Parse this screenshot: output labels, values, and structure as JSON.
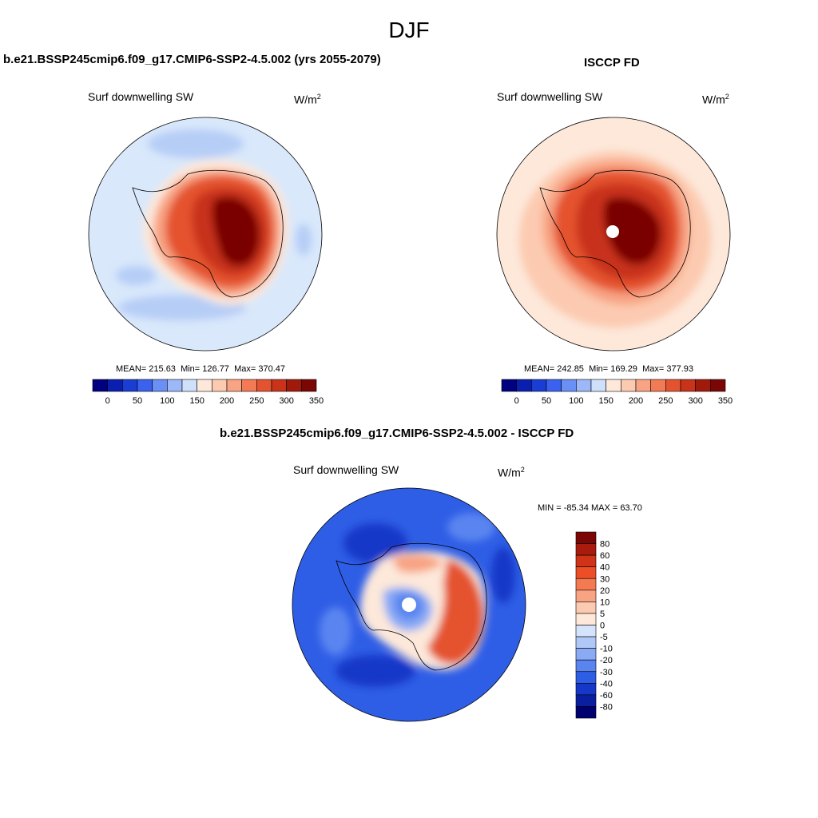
{
  "main_title": "DJF",
  "panels": {
    "model": {
      "title": "b.e21.BSSP245cmip6.f09_g17.CMIP6-SSP2-4.5.002 (yrs 2055-2079)",
      "variable": "Surf downwelling SW",
      "units": "W/m",
      "units_exp": "2",
      "stats": {
        "mean_label": "MEAN=",
        "mean": "215.63",
        "min_label": "Min=",
        "min": "126.77",
        "max_label": "Max=",
        "max": "370.47"
      }
    },
    "obs": {
      "title": "ISCCP FD",
      "variable": "Surf downwelling SW",
      "units": "W/m",
      "units_exp": "2",
      "stats": {
        "mean_label": "MEAN=",
        "mean": "242.85",
        "min_label": "Min=",
        "min": "169.29",
        "max_label": "Max=",
        "max": "377.93"
      }
    },
    "diff": {
      "title": "b.e21.BSSP245cmip6.f09_g17.CMIP6-SSP2-4.5.002 - ISCCP FD",
      "variable": "Surf downwelling SW",
      "units": "W/m",
      "units_exp": "2",
      "minmax": "MIN = -85.34 MAX =  63.70"
    }
  },
  "colorbars": {
    "abs": {
      "ticks": [
        "0",
        "50",
        "100",
        "150",
        "200",
        "250",
        "300",
        "350"
      ],
      "colors": [
        "#000080",
        "#0a1fb0",
        "#1a3ed4",
        "#3a62ef",
        "#6a8ff5",
        "#9cb8f8",
        "#cfe0fb",
        "#fde8da",
        "#fccab0",
        "#f8a383",
        "#f27a55",
        "#e4532f",
        "#c8331a",
        "#a01a0c",
        "#7a0606"
      ]
    },
    "diff": {
      "labels": [
        "80",
        "60",
        "40",
        "30",
        "20",
        "10",
        "5",
        "0",
        "-5",
        "-10",
        "-20",
        "-30",
        "-40",
        "-60",
        "-80"
      ],
      "colors": [
        "#7a0606",
        "#a81b0d",
        "#cf3418",
        "#ec4f27",
        "#f47a52",
        "#f8a383",
        "#fccab0",
        "#fde8da",
        "#d6e4fb",
        "#b0c8f8",
        "#8aaaf5",
        "#5a85f0",
        "#2f5ee6",
        "#1538c8",
        "#0a1fa0",
        "#000070"
      ]
    }
  },
  "chart_data": [
    {
      "type": "heatmap",
      "title": "Surf downwelling SW",
      "subtitle": "b.e21.BSSP245cmip6.f09_g17.CMIP6-SSP2-4.5.002 (yrs 2055-2079)",
      "units": "W/m2",
      "projection": "south polar stereographic",
      "levels": [
        0,
        25,
        50,
        75,
        100,
        125,
        150,
        175,
        200,
        225,
        250,
        275,
        300,
        325,
        350
      ],
      "mean": 215.63,
      "min": 126.77,
      "max": 370.47
    },
    {
      "type": "heatmap",
      "title": "Surf downwelling SW",
      "subtitle": "ISCCP FD",
      "units": "W/m2",
      "projection": "south polar stereographic",
      "levels": [
        0,
        25,
        50,
        75,
        100,
        125,
        150,
        175,
        200,
        225,
        250,
        275,
        300,
        325,
        350
      ],
      "mean": 242.85,
      "min": 169.29,
      "max": 377.93
    },
    {
      "type": "heatmap",
      "title": "Surf downwelling SW",
      "subtitle": "b.e21.BSSP245cmip6.f09_g17.CMIP6-SSP2-4.5.002 - ISCCP FD",
      "units": "W/m2",
      "projection": "south polar stereographic",
      "levels": [
        -80,
        -60,
        -40,
        -30,
        -20,
        -10,
        -5,
        0,
        5,
        10,
        20,
        30,
        40,
        60,
        80
      ],
      "min": -85.34,
      "max": 63.7
    }
  ]
}
